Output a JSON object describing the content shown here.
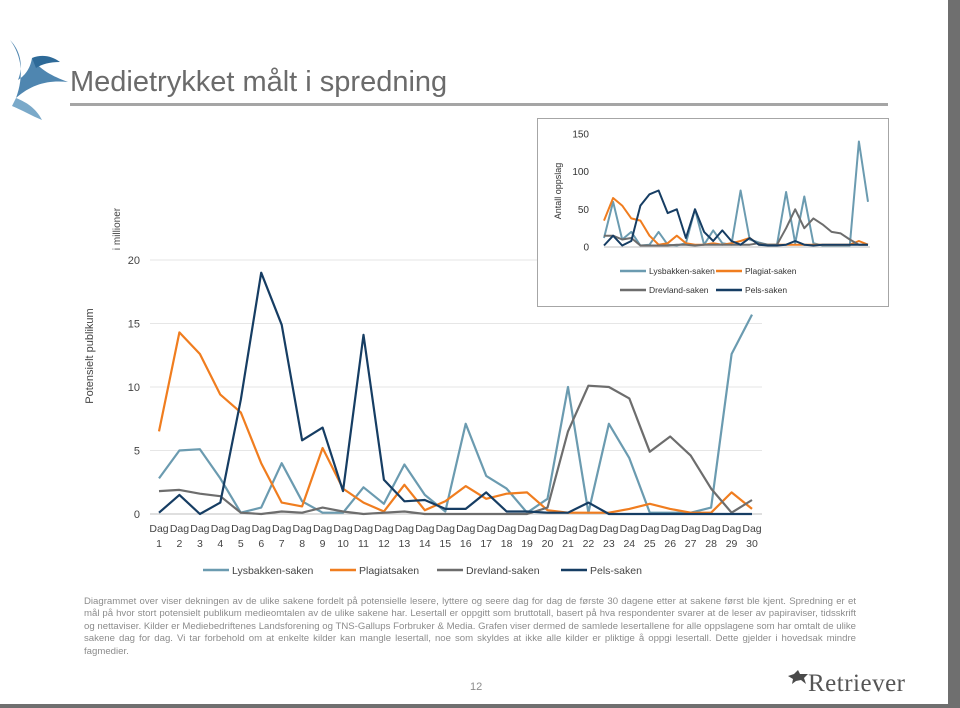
{
  "slide": {
    "title": "Medietrykket målt i spredning",
    "caption": "Diagrammet over viser dekningen av de ulike sakene fordelt på potensielle lesere, lyttere og seere dag for dag de første 30 dagene etter at sakene først ble kjent. Spredning er et mål på hvor stort potensielt publikum medieomtalen av de ulike sakene har. Lesertall er oppgitt som bruttotall, basert på hva respondenter svarer at de leser av papiraviser, tidsskrift og nettaviser. Kilder er Mediebedriftenes Landsforening og TNS-Gallups Forbruker & Media. Grafen viser dermed de samlede lesertallene for alle oppslagene som har omtalt de ulike sakene dag for dag. Vi tar forbehold om at enkelte kilder kan mangle lesertall, noe som skyldes at ikke alle kilder er pliktige å oppgi lesertall. Dette gjelder i hovedsak mindre fagmedier.",
    "page_number": "12",
    "brand": "Retriever",
    "icons": [
      "bird-logo-icon",
      "retriever-dog-icon"
    ]
  },
  "chart_data": [
    {
      "type": "line",
      "ylabel": "Potensielt publikum",
      "ylabel_unit": "i millioner",
      "xlabel": "",
      "title": "",
      "ylim": [
        0,
        20
      ],
      "yticks": [
        0,
        5,
        10,
        15,
        20
      ],
      "grid": true,
      "legend_position": "bottom",
      "categories": [
        "Dag 1",
        "Dag 2",
        "Dag 3",
        "Dag 4",
        "Dag 5",
        "Dag 6",
        "Dag 7",
        "Dag 8",
        "Dag 9",
        "Dag 10",
        "Dag 11",
        "Dag 12",
        "Dag 13",
        "Dag 14",
        "Dag 15",
        "Dag 16",
        "Dag 17",
        "Dag 18",
        "Dag 19",
        "Dag 20",
        "Dag 21",
        "Dag 22",
        "Dag 23",
        "Dag 24",
        "Dag 25",
        "Dag 26",
        "Dag 27",
        "Dag 28",
        "Dag 29",
        "Dag 30"
      ],
      "series": [
        {
          "name": "Lysbakken-saken",
          "color": "#6b9bb0",
          "values": [
            2.8,
            5.0,
            5.1,
            2.8,
            0.1,
            0.5,
            4.0,
            1.0,
            0.1,
            0.1,
            2.1,
            0.8,
            3.9,
            1.5,
            0.2,
            7.1,
            3.0,
            2.0,
            0.1,
            1.2,
            10.0,
            0.1,
            7.1,
            4.4,
            0.1,
            0.1,
            0.1,
            0.5,
            12.6,
            15.7
          ]
        },
        {
          "name": "Plagiatsaken",
          "color": "#f07d1f",
          "values": [
            6.5,
            14.3,
            12.6,
            9.4,
            8.0,
            4.0,
            0.9,
            0.6,
            5.2,
            2.0,
            0.9,
            0.2,
            2.3,
            0.3,
            1.0,
            2.2,
            1.2,
            1.6,
            1.7,
            0.3,
            0.1,
            0.1,
            0.1,
            0.4,
            0.8,
            0.4,
            0.1,
            0.1,
            1.7,
            0.4
          ]
        },
        {
          "name": "Drevland-saken",
          "color": "#6d6d6d",
          "values": [
            1.8,
            1.9,
            1.6,
            1.4,
            0.1,
            0.0,
            0.2,
            0.1,
            0.5,
            0.2,
            0.0,
            0.1,
            0.2,
            0.0,
            0.0,
            0.0,
            0.0,
            0.0,
            0.0,
            0.5,
            6.5,
            10.1,
            10.0,
            9.1,
            4.9,
            6.1,
            4.6,
            2.0,
            0.1,
            1.1
          ]
        },
        {
          "name": "Pels-saken",
          "color": "#163d63",
          "values": [
            0.1,
            1.5,
            0.0,
            0.9,
            9.0,
            19.0,
            14.9,
            5.8,
            6.8,
            1.8,
            14.1,
            2.7,
            1.0,
            1.1,
            0.4,
            0.4,
            1.7,
            0.2,
            0.2,
            0.1,
            0.1,
            0.9,
            0.0,
            0.0,
            0.0,
            0.0,
            0.0,
            0.0,
            0.0,
            0.0
          ]
        }
      ]
    },
    {
      "type": "line",
      "ylabel": "Antall oppslag",
      "title": "",
      "ylim": [
        0,
        150
      ],
      "yticks": [
        0,
        50,
        100,
        150
      ],
      "grid": false,
      "legend_position": "bottom",
      "series": [
        {
          "name": "Lysbakken-saken",
          "color": "#6b9bb0",
          "values": [
            12,
            60,
            10,
            20,
            2,
            3,
            20,
            3,
            2,
            5,
            50,
            3,
            22,
            5,
            3,
            75,
            10,
            6,
            3,
            3,
            73,
            5,
            67,
            5,
            2,
            2,
            2,
            2,
            140,
            60
          ]
        },
        {
          "name": "Plagiat-saken",
          "color": "#f07d1f",
          "values": [
            35,
            65,
            55,
            38,
            35,
            15,
            3,
            5,
            15,
            5,
            3,
            3,
            5,
            3,
            5,
            8,
            12,
            3,
            3,
            3,
            3,
            3,
            3,
            3,
            3,
            3,
            3,
            3,
            8,
            3
          ]
        },
        {
          "name": "Drevland-saken",
          "color": "#6d6d6d",
          "values": [
            15,
            15,
            10,
            12,
            2,
            2,
            2,
            2,
            3,
            3,
            2,
            3,
            3,
            3,
            3,
            3,
            3,
            5,
            3,
            3,
            25,
            50,
            25,
            38,
            30,
            20,
            18,
            10,
            3,
            3
          ]
        },
        {
          "name": "Pels-saken",
          "color": "#163d63",
          "values": [
            2,
            15,
            2,
            8,
            55,
            70,
            75,
            45,
            50,
            12,
            50,
            20,
            8,
            22,
            8,
            3,
            12,
            3,
            2,
            2,
            3,
            8,
            3,
            2,
            3,
            3,
            3,
            3,
            3,
            3
          ]
        }
      ]
    }
  ]
}
